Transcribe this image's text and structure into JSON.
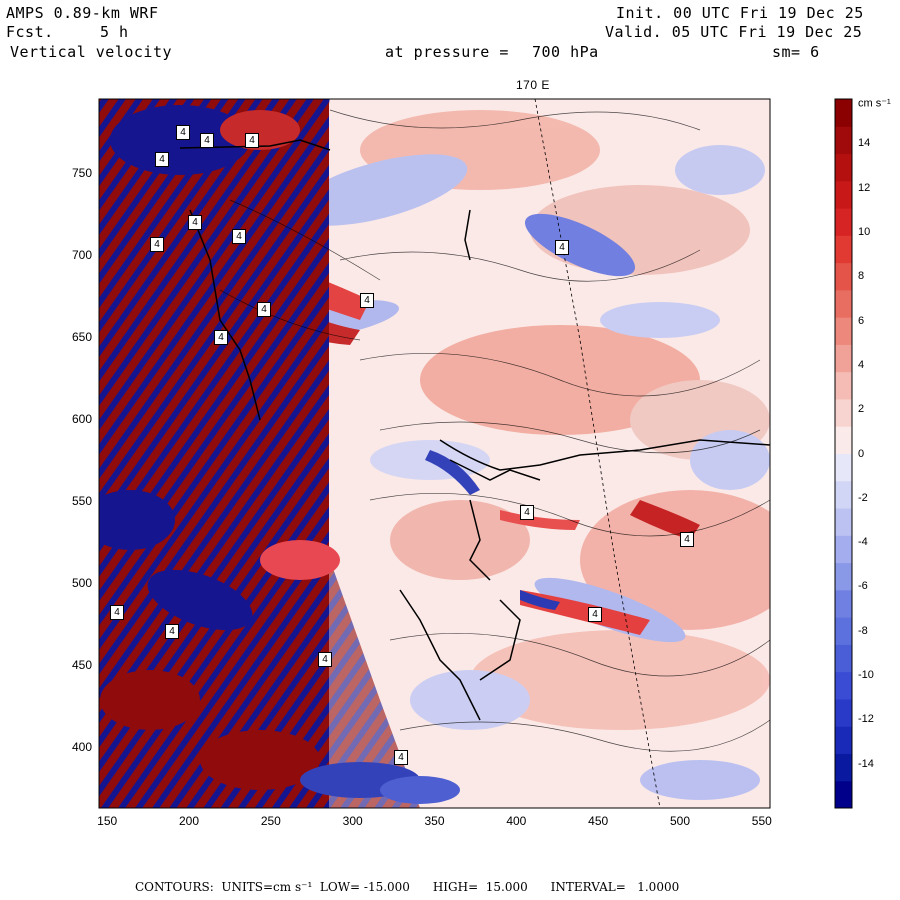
{
  "header": {
    "model": "AMPS 0.89-km WRF",
    "fcst_label": "Fcst.",
    "fcst_value": "5 h",
    "field": "Vertical velocity",
    "init": "Init. 00 UTC Fri 19 Dec 25",
    "valid": "Valid. 05 UTC Fri 19 Dec 25",
    "level_label": "at pressure =",
    "level_value": "700 hPa",
    "smoothing": "sm= 6"
  },
  "map": {
    "meridian_label": "170 E",
    "x_ticks": [
      "150",
      "200",
      "250",
      "300",
      "350",
      "400",
      "450",
      "500",
      "550"
    ],
    "y_ticks": [
      "750",
      "700",
      "650",
      "600",
      "550",
      "500",
      "450",
      "400"
    ],
    "x_range": [
      145,
      555
    ],
    "y_range": [
      363,
      795
    ]
  },
  "colorbar": {
    "units": "cm s⁻¹",
    "labels": [
      "14",
      "12",
      "10",
      "8",
      "6",
      "4",
      "2",
      "0",
      "-2",
      "-4",
      "-6",
      "-8",
      "-10",
      "-12",
      "-14"
    ],
    "range": [
      -16,
      16
    ],
    "colors": {
      "strong_up": "#8b0000",
      "up": "#e8323c",
      "weak_up": "#f6b8b0",
      "neutral": "#fbeaea",
      "weak_down": "#c8ccf0",
      "down": "#4458d0",
      "strong_down": "#00008b"
    }
  },
  "contour_labels": [
    "4",
    "4",
    "4",
    "4",
    "4",
    "4",
    "4",
    "4",
    "4",
    "4",
    "4",
    "4",
    "4",
    "4",
    "4",
    "4",
    "4",
    "4"
  ],
  "footer": {
    "contours": "CONTOURS:  UNITS=cm s⁻¹  LOW= -15.000      HIGH=  15.000      INTERVAL=   1.0000"
  }
}
